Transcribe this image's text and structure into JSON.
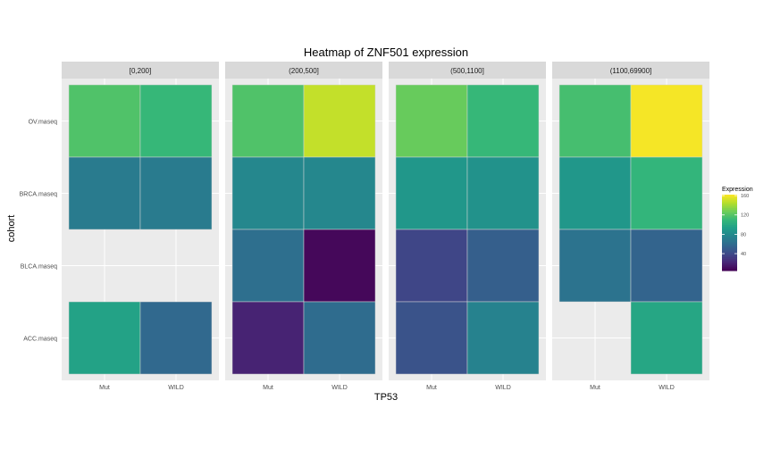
{
  "chart_data": {
    "type": "heatmap",
    "title": "Heatmap of ZNF501 expression",
    "xlabel": "TP53",
    "ylabel": "cohort",
    "x_categories": [
      "Mut",
      "WILD"
    ],
    "y_categories": [
      "ACC.maseq",
      "BLCA.maseq",
      "BRCA.maseq",
      "OV.maseq"
    ],
    "facets": [
      {
        "label": "[0,200]",
        "cells": [
          {
            "x": "Mut",
            "y": "OV.maseq",
            "value": 118
          },
          {
            "x": "WILD",
            "y": "OV.maseq",
            "value": 110
          },
          {
            "x": "Mut",
            "y": "BRCA.maseq",
            "value": 70
          },
          {
            "x": "WILD",
            "y": "BRCA.maseq",
            "value": 70
          },
          {
            "x": "Mut",
            "y": "ACC.maseq",
            "value": 95
          },
          {
            "x": "WILD",
            "y": "ACC.maseq",
            "value": 58
          }
        ]
      },
      {
        "label": "(200,500]",
        "cells": [
          {
            "x": "Mut",
            "y": "OV.maseq",
            "value": 118
          },
          {
            "x": "WILD",
            "y": "OV.maseq",
            "value": 148
          },
          {
            "x": "Mut",
            "y": "BRCA.maseq",
            "value": 78
          },
          {
            "x": "WILD",
            "y": "BRCA.maseq",
            "value": 78
          },
          {
            "x": "Mut",
            "y": "BLCA.maseq",
            "value": 62
          },
          {
            "x": "WILD",
            "y": "BLCA.maseq",
            "value": 8
          },
          {
            "x": "Mut",
            "y": "ACC.maseq",
            "value": 20
          },
          {
            "x": "WILD",
            "y": "ACC.maseq",
            "value": 60
          }
        ]
      },
      {
        "label": "(500,1100]",
        "cells": [
          {
            "x": "Mut",
            "y": "OV.maseq",
            "value": 125
          },
          {
            "x": "WILD",
            "y": "OV.maseq",
            "value": 110
          },
          {
            "x": "Mut",
            "y": "BRCA.maseq",
            "value": 88
          },
          {
            "x": "WILD",
            "y": "BRCA.maseq",
            "value": 85
          },
          {
            "x": "Mut",
            "y": "BLCA.maseq",
            "value": 38
          },
          {
            "x": "WILD",
            "y": "BLCA.maseq",
            "value": 52
          },
          {
            "x": "Mut",
            "y": "ACC.maseq",
            "value": 45
          },
          {
            "x": "WILD",
            "y": "ACC.maseq",
            "value": 75
          }
        ]
      },
      {
        "label": "(1100,69900]",
        "cells": [
          {
            "x": "Mut",
            "y": "OV.maseq",
            "value": 115
          },
          {
            "x": "WILD",
            "y": "OV.maseq",
            "value": 160
          },
          {
            "x": "Mut",
            "y": "BRCA.maseq",
            "value": 88
          },
          {
            "x": "WILD",
            "y": "BRCA.maseq",
            "value": 108
          },
          {
            "x": "Mut",
            "y": "BLCA.maseq",
            "value": 65
          },
          {
            "x": "WILD",
            "y": "BLCA.maseq",
            "value": 55
          },
          {
            "x": "WILD",
            "y": "ACC.maseq",
            "value": 98
          }
        ]
      }
    ],
    "legend": {
      "title": "Expression",
      "placement": "right",
      "breaks": [
        40,
        80,
        120,
        160
      ],
      "range": [
        5,
        162
      ]
    },
    "colormap": "viridis",
    "grid": true
  }
}
